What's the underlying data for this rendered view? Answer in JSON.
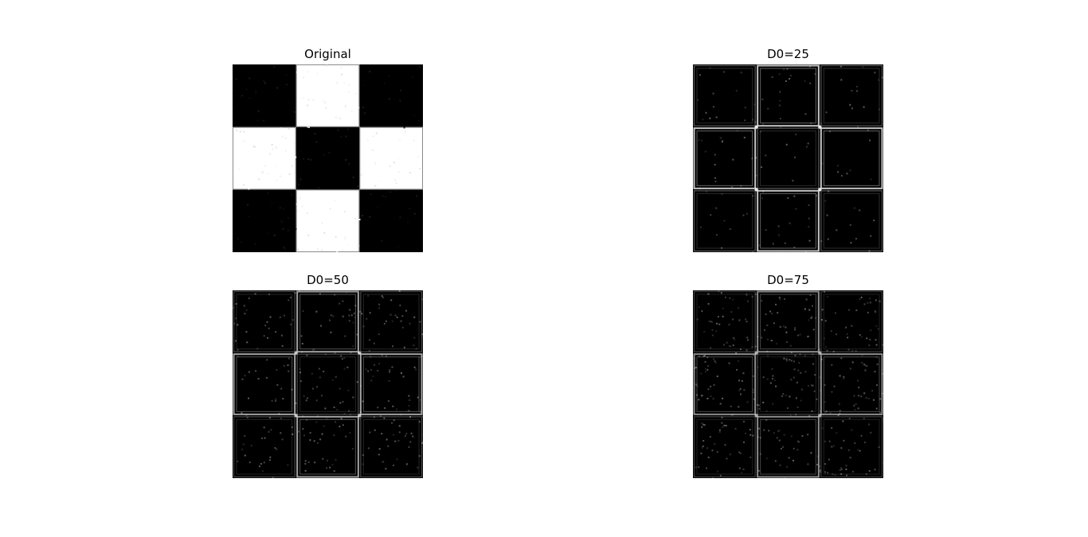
{
  "figure": {
    "panels": [
      {
        "title": "Original",
        "variant": "original"
      },
      {
        "title": "D0=25",
        "variant": "edges",
        "noise": 0.1,
        "edge": 0.9
      },
      {
        "title": "D0=50",
        "variant": "edges",
        "noise": 0.22,
        "edge": 0.75
      },
      {
        "title": "D0=75",
        "variant": "edges",
        "noise": 0.3,
        "edge": 0.65
      }
    ],
    "pattern": {
      "grid": 3,
      "cells": [
        [
          0,
          1,
          0
        ],
        [
          1,
          0,
          1
        ],
        [
          0,
          1,
          0
        ]
      ]
    },
    "colors": {
      "dark": "#000000",
      "light": "#ffffff",
      "edge": "#d9d9d9"
    }
  }
}
